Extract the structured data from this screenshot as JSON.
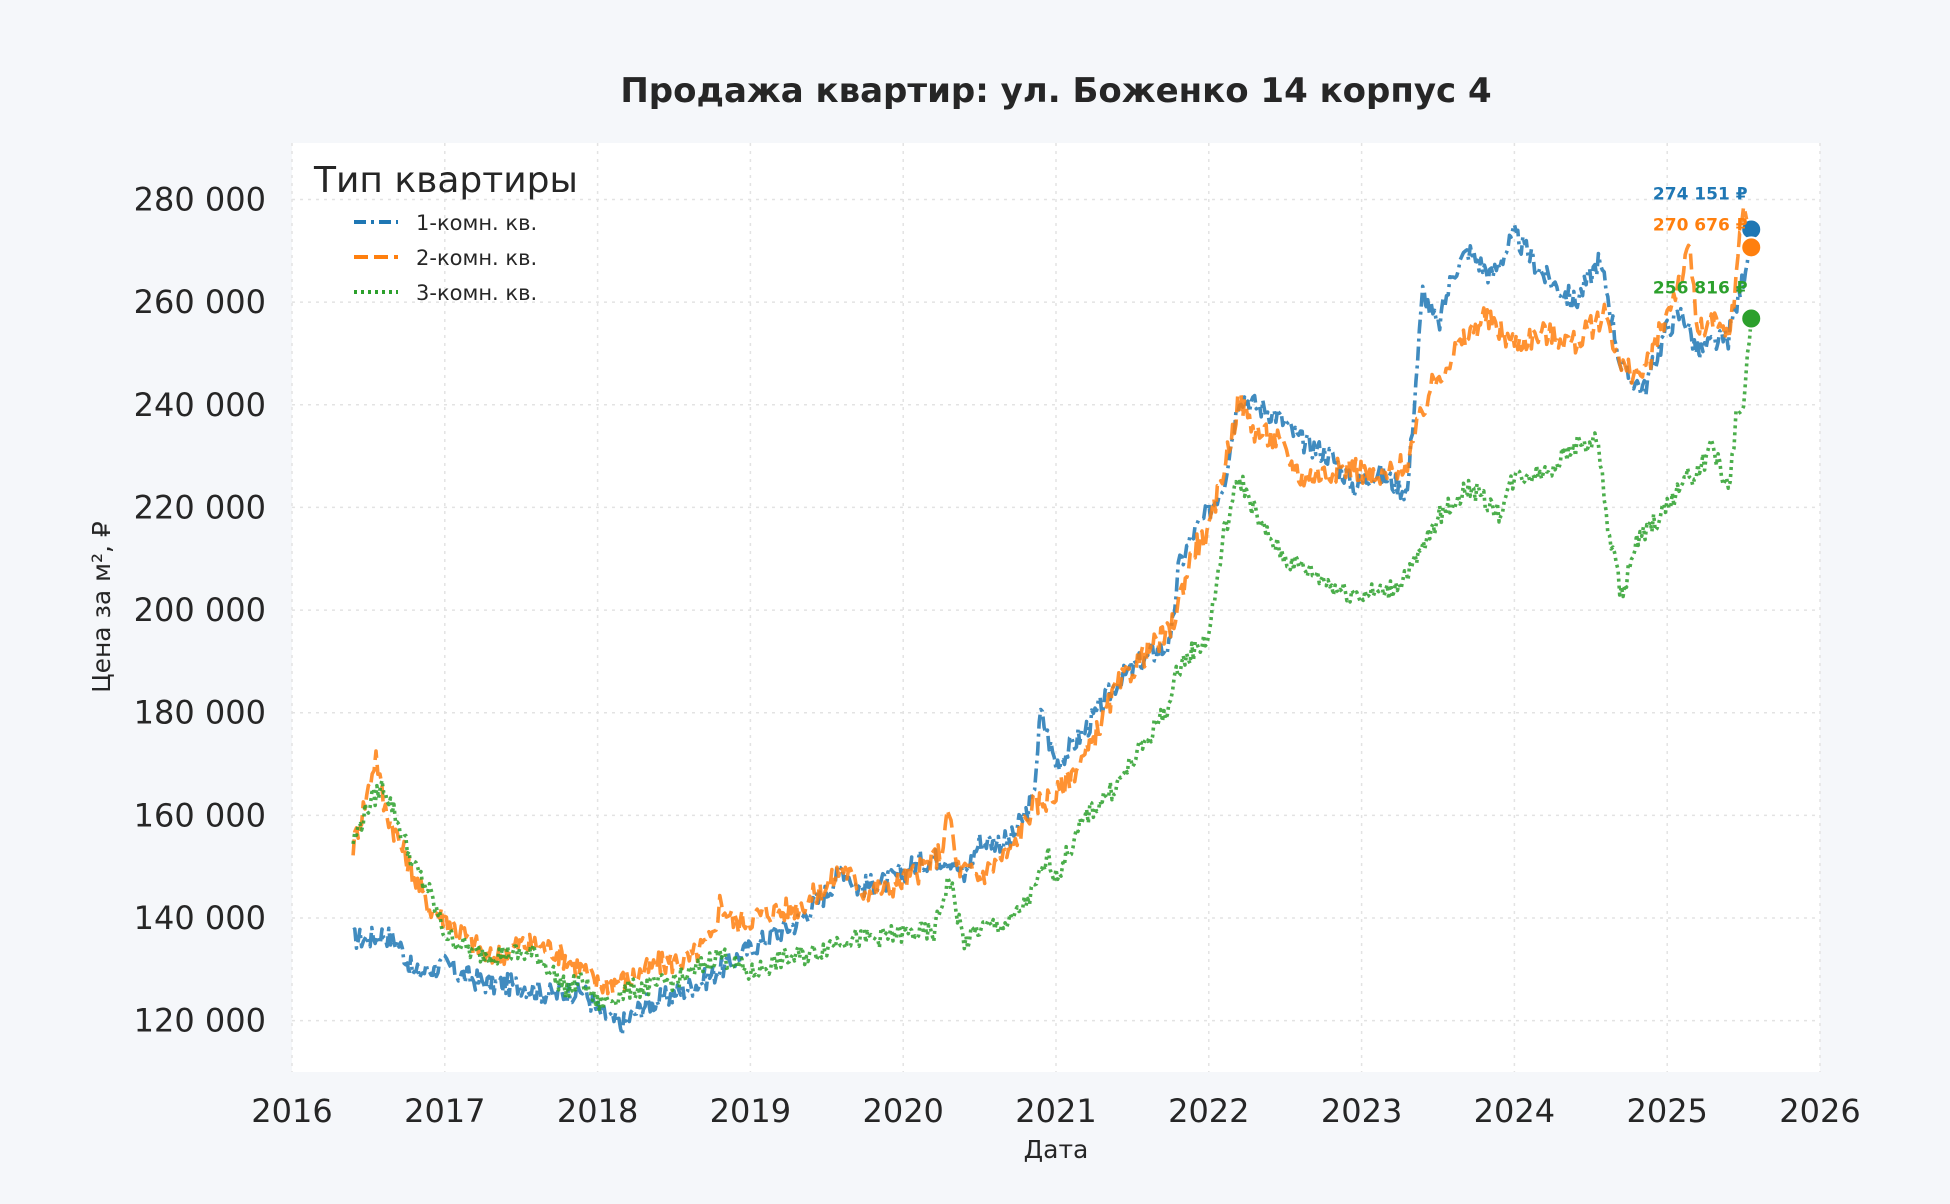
{
  "chart_data": {
    "type": "line",
    "title": "Продажа квартир: ул. Боженко 14 корпус 4",
    "xlabel": "Дата",
    "ylabel": "Цена за м², ₽",
    "xlim": [
      2016,
      2026
    ],
    "ylim": [
      110000,
      291000
    ],
    "x_ticks": [
      2016,
      2017,
      2018,
      2019,
      2020,
      2021,
      2022,
      2023,
      2024,
      2025,
      2026
    ],
    "y_ticks": [
      120000,
      140000,
      160000,
      180000,
      200000,
      220000,
      240000,
      260000,
      280000
    ],
    "y_tick_labels": [
      "120 000",
      "140 000",
      "160 000",
      "180 000",
      "200 000",
      "220 000",
      "240 000",
      "260 000",
      "280 000"
    ],
    "grid": true,
    "legend": {
      "title": "Тип квартиры",
      "position": "top-left"
    },
    "series": [
      {
        "name": "1-комн. кв.",
        "color": "#1f77b4",
        "dash": "dashdot",
        "x": [
          2016.4,
          2016.5,
          2016.6,
          2016.7,
          2016.8,
          2016.9,
          2017.0,
          2017.1,
          2017.3,
          2017.5,
          2017.7,
          2017.9,
          2018.0,
          2018.15,
          2018.3,
          2018.5,
          2018.7,
          2018.9,
          2019.1,
          2019.3,
          2019.5,
          2019.6,
          2019.7,
          2019.9,
          2020.1,
          2020.3,
          2020.4,
          2020.5,
          2020.7,
          2020.85,
          2020.9,
          2021.0,
          2021.2,
          2021.4,
          2021.6,
          2021.75,
          2021.8,
          2021.9,
          2022.0,
          2022.1,
          2022.2,
          2022.3,
          2022.45,
          2022.6,
          2022.8,
          2022.95,
          2023.1,
          2023.3,
          2023.4,
          2023.5,
          2023.6,
          2023.7,
          2023.85,
          2024.0,
          2024.2,
          2024.4,
          2024.55,
          2024.6,
          2024.7,
          2024.85,
          2025.0,
          2025.1,
          2025.2,
          2025.3,
          2025.4,
          2025.5,
          2025.55
        ],
        "y": [
          136000,
          136000,
          137000,
          135000,
          129000,
          130000,
          131000,
          129000,
          127000,
          127000,
          125000,
          126000,
          122000,
          119000,
          123000,
          125000,
          128000,
          132000,
          136000,
          139000,
          145000,
          150000,
          146000,
          147000,
          151000,
          152000,
          148000,
          155000,
          155000,
          163000,
          180000,
          170000,
          177000,
          186000,
          191000,
          193000,
          208000,
          215000,
          219000,
          225000,
          242000,
          240000,
          238000,
          233000,
          230000,
          224000,
          227000,
          223000,
          262000,
          255000,
          266000,
          270000,
          265000,
          273000,
          265000,
          260000,
          268000,
          263000,
          247000,
          243000,
          255000,
          258000,
          250000,
          252000,
          253000,
          265000,
          274151
        ]
      },
      {
        "name": "2-комн. кв.",
        "color": "#ff7f0e",
        "dash": "dashed",
        "x": [
          2016.4,
          2016.5,
          2016.55,
          2016.6,
          2016.7,
          2016.8,
          2016.9,
          2017.0,
          2017.15,
          2017.3,
          2017.5,
          2017.7,
          2017.9,
          2018.0,
          2018.2,
          2018.4,
          2018.6,
          2018.75,
          2018.8,
          2018.9,
          2019.1,
          2019.3,
          2019.5,
          2019.6,
          2019.75,
          2019.9,
          2020.1,
          2020.25,
          2020.3,
          2020.35,
          2020.5,
          2020.7,
          2020.85,
          2021.0,
          2021.2,
          2021.4,
          2021.6,
          2021.75,
          2021.9,
          2022.0,
          2022.1,
          2022.2,
          2022.3,
          2022.45,
          2022.6,
          2022.8,
          2022.95,
          2023.1,
          2023.3,
          2023.35,
          2023.45,
          2023.6,
          2023.8,
          2024.0,
          2024.2,
          2024.4,
          2024.6,
          2024.7,
          2024.85,
          2025.0,
          2025.15,
          2025.2,
          2025.3,
          2025.4,
          2025.45,
          2025.5,
          2025.55
        ],
        "y": [
          154000,
          165000,
          172000,
          162000,
          155000,
          148000,
          142000,
          140000,
          136000,
          132000,
          135000,
          134000,
          130000,
          127000,
          128000,
          131000,
          132000,
          136000,
          143000,
          139000,
          141000,
          142000,
          146000,
          150000,
          145000,
          146000,
          149000,
          153000,
          161000,
          150000,
          148000,
          153000,
          162000,
          164000,
          172000,
          185000,
          192000,
          196000,
          212000,
          215000,
          228000,
          241000,
          235000,
          233000,
          226000,
          227000,
          228000,
          225000,
          229000,
          234000,
          243000,
          250000,
          257000,
          252000,
          254000,
          252000,
          258000,
          247000,
          246000,
          258000,
          270000,
          254000,
          256000,
          253000,
          264000,
          280000,
          270676
        ]
      },
      {
        "name": "3-комн. кв.",
        "color": "#2ca02c",
        "dash": "dotted",
        "x": [
          2016.4,
          2016.5,
          2016.6,
          2016.7,
          2016.8,
          2016.9,
          2017.0,
          2017.2,
          2017.4,
          2017.6,
          2017.8,
          2017.9,
          2018.0,
          2018.2,
          2018.4,
          2018.6,
          2018.8,
          2019.0,
          2019.2,
          2019.4,
          2019.6,
          2019.8,
          2020.0,
          2020.2,
          2020.3,
          2020.4,
          2020.5,
          2020.7,
          2020.85,
          2020.95,
          2021.0,
          2021.2,
          2021.4,
          2021.6,
          2021.75,
          2021.8,
          2022.0,
          2022.05,
          2022.1,
          2022.2,
          2022.35,
          2022.5,
          2022.7,
          2022.85,
          2023.0,
          2023.2,
          2023.35,
          2023.5,
          2023.7,
          2023.9,
          2024.0,
          2024.2,
          2024.4,
          2024.55,
          2024.6,
          2024.7,
          2024.8,
          2025.0,
          2025.1,
          2025.2,
          2025.3,
          2025.4,
          2025.45,
          2025.5,
          2025.55
        ],
        "y": [
          155000,
          162000,
          166000,
          158000,
          150000,
          145000,
          137000,
          133000,
          133000,
          133000,
          126000,
          128000,
          123000,
          126000,
          127000,
          129000,
          133000,
          129000,
          132000,
          133000,
          136000,
          136000,
          137000,
          137000,
          148000,
          135000,
          138000,
          139000,
          145000,
          152000,
          148000,
          160000,
          166000,
          175000,
          182000,
          189000,
          195000,
          205000,
          215000,
          226000,
          216000,
          210000,
          207000,
          204000,
          203000,
          204000,
          209000,
          218000,
          224000,
          219000,
          226000,
          227000,
          232000,
          233000,
          218000,
          203000,
          213000,
          220000,
          225000,
          227000,
          232000,
          223000,
          237000,
          240000,
          256816
        ]
      }
    ],
    "end_labels": [
      "274 151 ₽",
      "270 676 ₽",
      "256 816 ₽"
    ]
  }
}
